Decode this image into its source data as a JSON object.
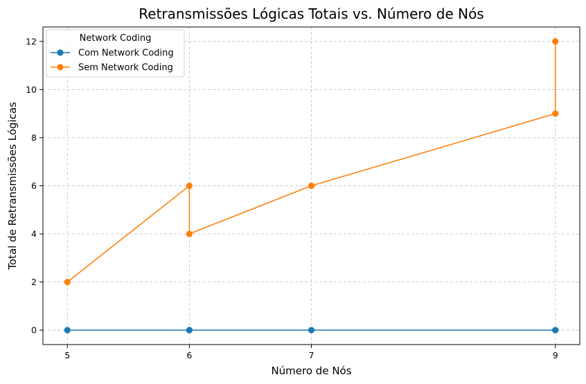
{
  "chart_data": {
    "type": "line",
    "title": "Retransmissões Lógicas Totais vs. Número de Nós",
    "xlabel": "Número de Nós",
    "ylabel": "Total de Retransmissões Lógicas",
    "xlim": [
      4.8,
      9.2
    ],
    "ylim": [
      -0.6,
      12.6
    ],
    "xticks": [
      5,
      6,
      7,
      9
    ],
    "yticks": [
      0,
      2,
      4,
      6,
      8,
      10,
      12
    ],
    "grid": true,
    "legend": {
      "title": "Network Coding",
      "placement": "top-left"
    },
    "series": [
      {
        "name": "Com Network Coding",
        "color": "#1f77b4",
        "points": [
          [
            5,
            0
          ],
          [
            6,
            0
          ],
          [
            6,
            0
          ],
          [
            7,
            0
          ],
          [
            9,
            0
          ],
          [
            9,
            0
          ]
        ]
      },
      {
        "name": "Sem Network Coding",
        "color": "#ff7f0e",
        "points": [
          [
            5,
            2
          ],
          [
            6,
            6
          ],
          [
            6,
            4
          ],
          [
            7,
            6
          ],
          [
            9,
            9
          ],
          [
            9,
            12
          ]
        ]
      }
    ]
  }
}
